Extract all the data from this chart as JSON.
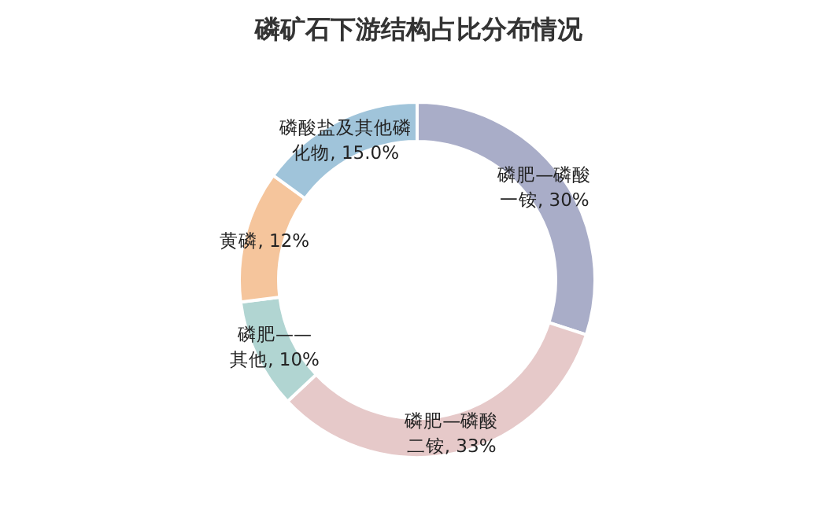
{
  "chart_data": {
    "type": "donut",
    "title": "磷矿石下游结构占比分布情况",
    "categories": [
      "磷肥—磷酸一铵",
      "磷肥—磷酸二铵",
      "磷肥——其他",
      "黄磷",
      "磷酸盐及其他磷化物"
    ],
    "values": [
      30,
      33,
      10,
      12,
      15.0
    ],
    "value_labels": [
      "30%",
      "33%",
      "10%",
      "12%",
      "15.0%"
    ],
    "colors": [
      "#a9adc8",
      "#e6c9c9",
      "#b1d5d2",
      "#f5c59c",
      "#a0c4da"
    ]
  }
}
